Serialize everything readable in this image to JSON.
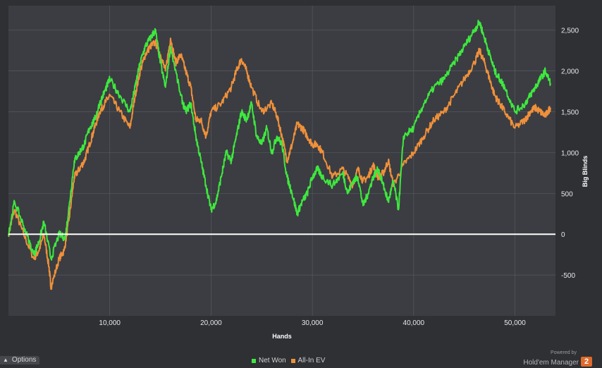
{
  "chart_data": {
    "type": "line",
    "title": "",
    "xlabel": "Hands",
    "ylabel": "Big Blinds",
    "xlim": [
      0,
      54000
    ],
    "ylim": [
      -1000,
      2800
    ],
    "x_ticks": [
      10000,
      20000,
      30000,
      40000,
      50000
    ],
    "x_tick_labels": [
      "10,000",
      "20,000",
      "30,000",
      "40,000",
      "50,000"
    ],
    "y_ticks": [
      -500,
      0,
      500,
      1000,
      1500,
      2000,
      2500
    ],
    "y_tick_labels": [
      "-500",
      "0",
      "500",
      "1,000",
      "1,500",
      "2,000",
      "2,500"
    ],
    "grid": true,
    "legend_position": "bottom",
    "zero_line": true,
    "series": [
      {
        "name": "Net Won",
        "color": "#3ee83e",
        "x": [
          0,
          600,
          1500,
          2500,
          3000,
          3500,
          4200,
          5000,
          5600,
          6000,
          6500,
          7000,
          7500,
          8000,
          8500,
          9000,
          9500,
          10000,
          11000,
          12000,
          12500,
          13000,
          13500,
          14000,
          14500,
          15000,
          15500,
          16000,
          17000,
          17500,
          18000,
          18500,
          19000,
          19500,
          20000,
          20500,
          21000,
          21500,
          22000,
          22500,
          23000,
          23500,
          24000,
          24500,
          25000,
          25500,
          26000,
          26500,
          27000,
          27500,
          28000,
          28500,
          29000,
          29500,
          30000,
          30500,
          31000,
          32000,
          33000,
          33500,
          34000,
          34500,
          35000,
          35500,
          36000,
          36500,
          37000,
          37500,
          38000,
          38500,
          39000,
          40000,
          41000,
          42000,
          43000,
          44000,
          45000,
          46000,
          46500,
          47000,
          47500,
          48000,
          48500,
          49000,
          50000,
          51000,
          51500,
          52000,
          52500,
          53000,
          53500
        ],
        "values": [
          0,
          400,
          100,
          -250,
          -100,
          150,
          -300,
          0,
          -50,
          350,
          900,
          1000,
          1100,
          1300,
          1400,
          1600,
          1750,
          1900,
          1700,
          1500,
          1800,
          2100,
          2300,
          2400,
          2500,
          2100,
          1800,
          2300,
          1700,
          1500,
          1600,
          1200,
          900,
          600,
          300,
          400,
          700,
          1000,
          900,
          1200,
          1500,
          1400,
          1600,
          1200,
          1100,
          1300,
          1000,
          1200,
          1100,
          700,
          500,
          250,
          400,
          500,
          700,
          800,
          700,
          600,
          750,
          500,
          650,
          700,
          350,
          500,
          700,
          800,
          600,
          400,
          650,
          300,
          1200,
          1300,
          1600,
          1800,
          1900,
          2100,
          2300,
          2500,
          2600,
          2400,
          2200,
          2000,
          1900,
          1800,
          1500,
          1600,
          1700,
          1800,
          1900,
          2000,
          1850
        ]
      },
      {
        "name": "All-In EV",
        "color": "#f0903a",
        "x": [
          0,
          600,
          1500,
          2500,
          3000,
          3500,
          4000,
          4200,
          5000,
          5500,
          6000,
          6500,
          7000,
          7500,
          8000,
          8500,
          9000,
          9500,
          10000,
          11000,
          12000,
          12500,
          13000,
          13500,
          14000,
          14500,
          15000,
          15500,
          16000,
          16500,
          17000,
          17500,
          18000,
          18500,
          19000,
          19500,
          20000,
          21000,
          22000,
          22500,
          23000,
          23500,
          24000,
          25000,
          26000,
          26500,
          27000,
          27500,
          28000,
          28500,
          29000,
          29500,
          30000,
          30500,
          31000,
          32000,
          33000,
          34000,
          34500,
          35000,
          35500,
          36000,
          36500,
          37000,
          37500,
          38000,
          39000,
          40000,
          41000,
          42000,
          43000,
          44000,
          45000,
          46000,
          46500,
          47000,
          47500,
          48000,
          48500,
          49000,
          50000,
          51000,
          51500,
          52000,
          52500,
          53000,
          53500
        ],
        "values": [
          0,
          300,
          0,
          -300,
          -200,
          0,
          -400,
          -650,
          -300,
          -200,
          200,
          700,
          800,
          900,
          1100,
          1300,
          1500,
          1600,
          1700,
          1500,
          1300,
          1700,
          2000,
          2200,
          2300,
          2350,
          2200,
          2000,
          2400,
          2100,
          2200,
          2000,
          1800,
          1400,
          1400,
          1200,
          1500,
          1600,
          1800,
          2000,
          2150,
          2000,
          1800,
          1500,
          1600,
          1450,
          1200,
          900,
          1100,
          1350,
          1300,
          1200,
          1100,
          1100,
          1000,
          700,
          800,
          600,
          800,
          650,
          700,
          850,
          700,
          750,
          900,
          600,
          850,
          1000,
          1200,
          1400,
          1500,
          1700,
          1900,
          2100,
          2250,
          2100,
          1900,
          1700,
          1600,
          1500,
          1300,
          1400,
          1500,
          1550,
          1500,
          1450,
          1550
        ]
      }
    ]
  },
  "options_label": "Options",
  "brand": {
    "powered_by": "Powered by",
    "name": "Hold'em Manager",
    "version": "2"
  }
}
